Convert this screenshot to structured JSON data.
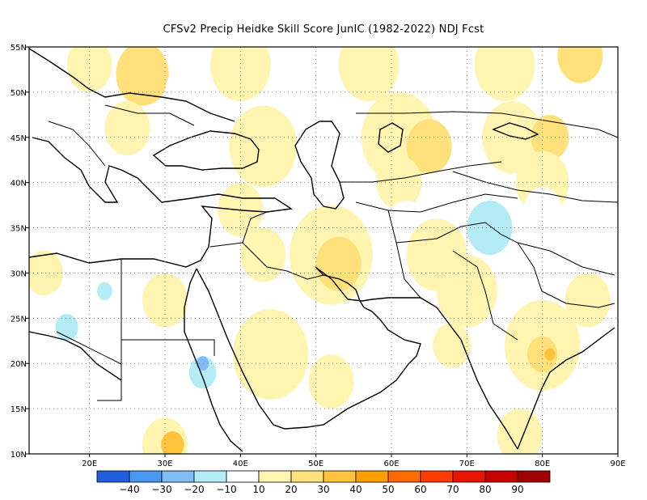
{
  "title": "CFSv2 Precip Heidke Skill Score JunIC (1982-2022) NDJ Fcst",
  "map": {
    "lon_range": [
      12,
      90
    ],
    "lat_range": [
      10,
      55
    ],
    "lon_ticks": [
      {
        "value": 20,
        "label": "20E"
      },
      {
        "value": 30,
        "label": "30E"
      },
      {
        "value": 40,
        "label": "40E"
      },
      {
        "value": 50,
        "label": "50E"
      },
      {
        "value": 60,
        "label": "60E"
      },
      {
        "value": 70,
        "label": "70E"
      },
      {
        "value": 80,
        "label": "80E"
      },
      {
        "value": 90,
        "label": "90E"
      }
    ],
    "lat_ticks": [
      {
        "value": 10,
        "label": "10N"
      },
      {
        "value": 15,
        "label": "15N"
      },
      {
        "value": 20,
        "label": "20N"
      },
      {
        "value": 25,
        "label": "25N"
      },
      {
        "value": 30,
        "label": "30N"
      },
      {
        "value": 35,
        "label": "35N"
      },
      {
        "value": 40,
        "label": "40N"
      },
      {
        "value": 45,
        "label": "45N"
      },
      {
        "value": 50,
        "label": "50N"
      },
      {
        "value": 55,
        "label": "55N"
      }
    ],
    "gridlines": "dotted",
    "skill_regions": [
      {
        "lon": 20,
        "lat": 53,
        "r": 3,
        "level": 10
      },
      {
        "lon": 27,
        "lat": 52,
        "r": 3.5,
        "level": 20
      },
      {
        "lon": 33,
        "lat": 50,
        "r": 3,
        "level": -10
      },
      {
        "lon": 40,
        "lat": 53,
        "r": 4,
        "level": 10
      },
      {
        "lon": 49,
        "lat": 50,
        "r": 4,
        "level": -10
      },
      {
        "lon": 57,
        "lat": 53,
        "r": 4,
        "level": 10
      },
      {
        "lon": 75,
        "lat": 53,
        "r": 4,
        "level": 10
      },
      {
        "lon": 85,
        "lat": 54,
        "r": 3,
        "level": 20
      },
      {
        "lon": 16,
        "lat": 48,
        "r": 3,
        "level": -10
      },
      {
        "lon": 25,
        "lat": 46,
        "r": 3,
        "level": 10
      },
      {
        "lon": 43,
        "lat": 44,
        "r": 4.5,
        "level": 10
      },
      {
        "lon": 61,
        "lat": 45,
        "r": 5,
        "level": 10
      },
      {
        "lon": 65,
        "lat": 44,
        "r": 3,
        "level": 20
      },
      {
        "lon": 76,
        "lat": 45,
        "r": 4,
        "level": 10
      },
      {
        "lon": 81,
        "lat": 45,
        "r": 2.5,
        "level": 20
      },
      {
        "lon": 61,
        "lat": 40,
        "r": 3,
        "level": 10
      },
      {
        "lon": 80,
        "lat": 40,
        "r": 3.5,
        "level": 10
      },
      {
        "lon": 35,
        "lat": 38,
        "r": 3,
        "level": -10
      },
      {
        "lon": 40,
        "lat": 37,
        "r": 3,
        "level": 10
      },
      {
        "lon": 62,
        "lat": 35,
        "r": 3,
        "level": -10
      },
      {
        "lon": 73,
        "lat": 35,
        "r": 3,
        "level": -20
      },
      {
        "lon": 80,
        "lat": 37,
        "r": 2.5,
        "level": -10
      },
      {
        "lon": 52,
        "lat": 32,
        "r": 5.5,
        "level": 10
      },
      {
        "lon": 53,
        "lat": 31,
        "r": 3,
        "level": 20
      },
      {
        "lon": 66,
        "lat": 32,
        "r": 4,
        "level": 10
      },
      {
        "lon": 43,
        "lat": 32,
        "r": 3,
        "level": 10
      },
      {
        "lon": 14,
        "lat": 30,
        "r": 2.5,
        "level": 10
      },
      {
        "lon": 16,
        "lat": 25,
        "r": 3,
        "level": -10
      },
      {
        "lon": 17,
        "lat": 24,
        "r": 1.5,
        "level": -20
      },
      {
        "lon": 22,
        "lat": 28,
        "r": 2.5,
        "level": -10
      },
      {
        "lon": 22,
        "lat": 28,
        "r": 1,
        "level": -20
      },
      {
        "lon": 30,
        "lat": 27,
        "r": 3,
        "level": 10
      },
      {
        "lon": 34,
        "lat": 23,
        "r": 2,
        "level": -10
      },
      {
        "lon": 34,
        "lat": 19,
        "r": 3,
        "level": -10
      },
      {
        "lon": 35,
        "lat": 19,
        "r": 1.8,
        "level": -20
      },
      {
        "lon": 35,
        "lat": 20,
        "r": 0.8,
        "level": -30
      },
      {
        "lon": 44,
        "lat": 21,
        "r": 5,
        "level": 10
      },
      {
        "lon": 52,
        "lat": 18,
        "r": 3,
        "level": 10
      },
      {
        "lon": 22,
        "lat": 17,
        "r": 3,
        "level": -10
      },
      {
        "lon": 26,
        "lat": 14,
        "r": 2.5,
        "level": -10
      },
      {
        "lon": 30,
        "lat": 11,
        "r": 3,
        "level": 10
      },
      {
        "lon": 31,
        "lat": 11,
        "r": 1.5,
        "level": 30
      },
      {
        "lon": 17,
        "lat": 11,
        "r": 2.5,
        "level": -10
      },
      {
        "lon": 70,
        "lat": 28,
        "r": 4,
        "level": 10
      },
      {
        "lon": 80,
        "lat": 22,
        "r": 5,
        "level": 10
      },
      {
        "lon": 80,
        "lat": 21,
        "r": 2,
        "level": 20
      },
      {
        "lon": 81,
        "lat": 21,
        "r": 0.7,
        "level": 30
      },
      {
        "lon": 68,
        "lat": 22,
        "r": 2.5,
        "level": 10
      },
      {
        "lon": 86,
        "lat": 27,
        "r": 3,
        "level": 10
      },
      {
        "lon": 77,
        "lat": 12,
        "r": 3,
        "level": 10
      }
    ]
  },
  "colorbar": {
    "levels": [
      -50,
      -40,
      -30,
      -20,
      -10,
      10,
      20,
      30,
      40,
      50,
      60,
      70,
      80,
      90,
      100
    ],
    "labels": [
      "−40",
      "−30",
      "−20",
      "−10",
      "10",
      "20",
      "30",
      "40",
      "50",
      "60",
      "70",
      "80",
      "90"
    ],
    "colors": [
      "#2060e0",
      "#4a96f0",
      "#80bcf5",
      "#b4ecf6",
      "#ffffff",
      "#fff4b0",
      "#ffe07a",
      "#ffc43c",
      "#ffa000",
      "#ff6a00",
      "#ff3c00",
      "#e81400",
      "#c80000",
      "#a00000"
    ]
  }
}
